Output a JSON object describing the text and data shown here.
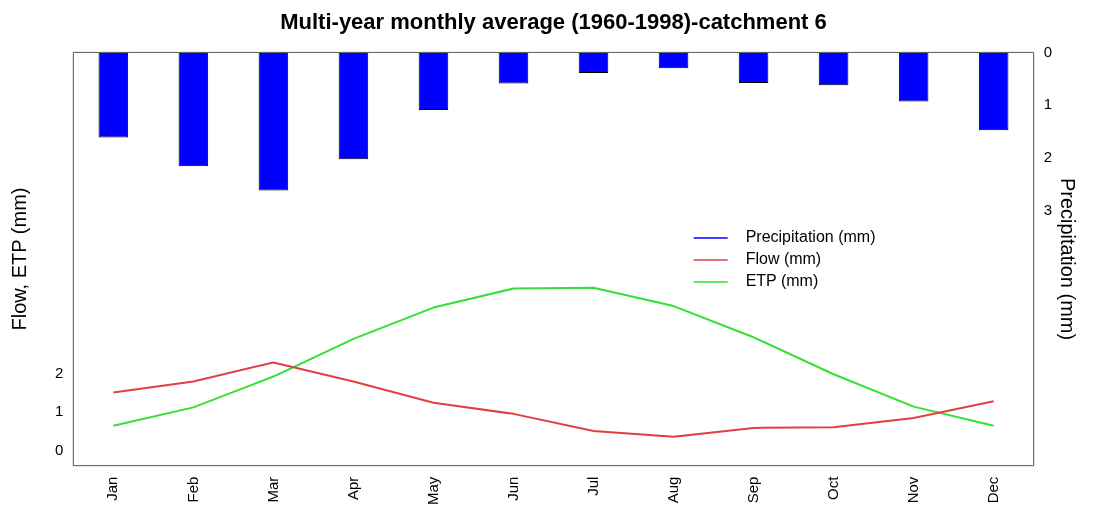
{
  "chart_data": {
    "type": "bar",
    "title": "Multi-year monthly average (1960-1998)-catchment 6",
    "ylabel": "Flow, ETP (mm)",
    "y2label": "Precipitation (mm)",
    "categories": [
      "Jan",
      "Feb",
      "Mar",
      "Apr",
      "May",
      "Jun",
      "Jul",
      "Aug",
      "Sep",
      "Oct",
      "Nov",
      "Dec"
    ],
    "series": [
      {
        "name": "Precipitation (mm)",
        "axis": "y2",
        "color": "#0000ff",
        "values": [
          1.61,
          2.15,
          2.61,
          2.02,
          1.09,
          0.59,
          0.39,
          0.3,
          0.58,
          0.62,
          0.93,
          1.47
        ]
      },
      {
        "name": "Flow (mm)",
        "type": "line",
        "color": "#e04040",
        "values": [
          1.52,
          1.81,
          2.31,
          1.81,
          1.25,
          0.96,
          0.51,
          0.36,
          0.59,
          0.61,
          0.85,
          1.29
        ]
      },
      {
        "name": "ETP (mm)",
        "type": "line",
        "color": "#33e033",
        "values": [
          0.65,
          1.13,
          1.94,
          2.93,
          3.75,
          4.25,
          4.27,
          3.79,
          2.97,
          2.0,
          1.15,
          0.65
        ]
      }
    ],
    "ylim": [
      -0.4,
      10.45
    ],
    "yticks": [
      0,
      1,
      2
    ],
    "y2lim": [
      7.81,
      0
    ],
    "y2ticks": [
      0,
      1,
      2,
      3
    ],
    "legend": "right",
    "grid": false
  }
}
